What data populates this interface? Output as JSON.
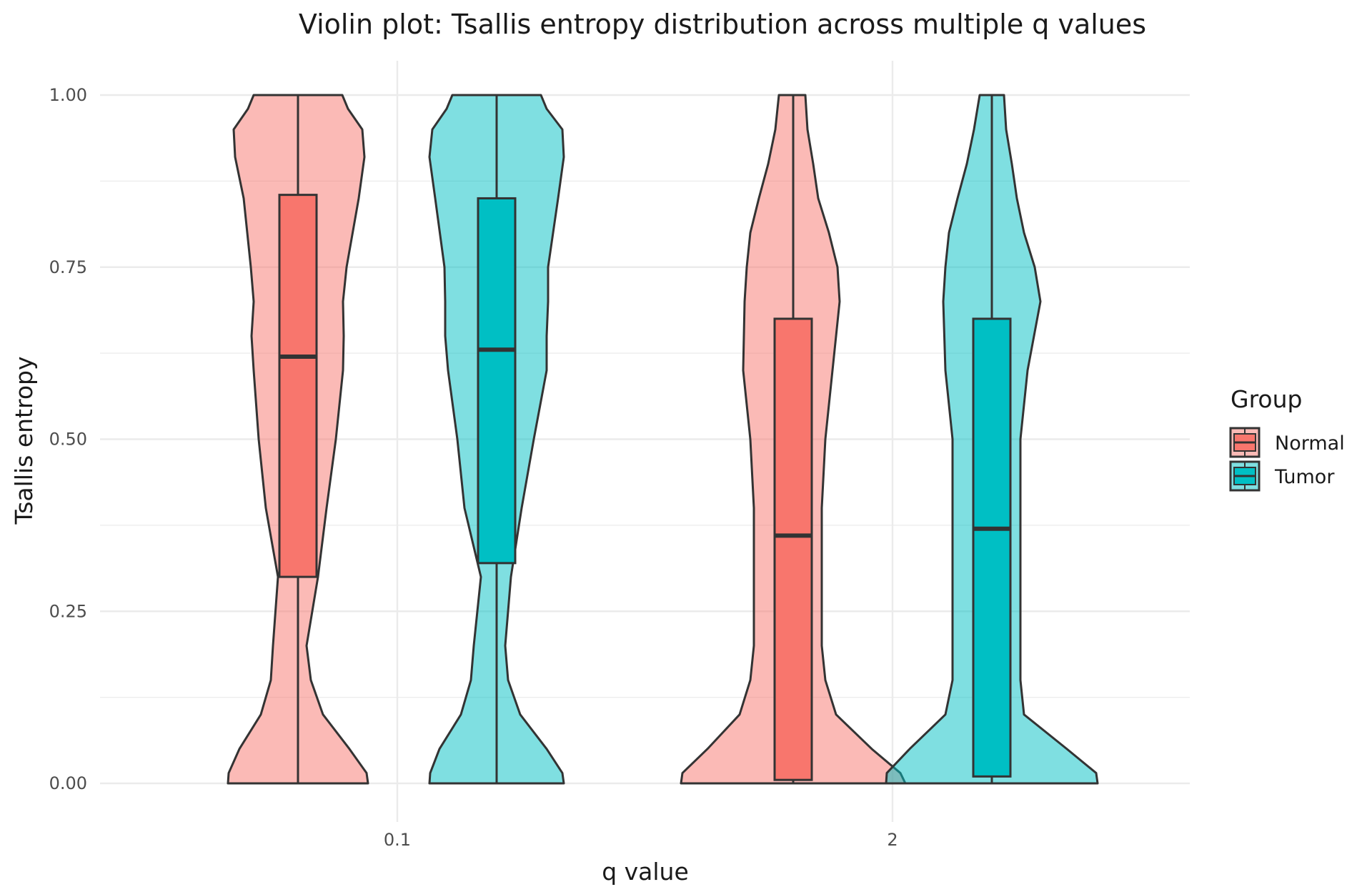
{
  "chart_data": {
    "type": "violin",
    "title": "Violin plot: Tsallis entropy distribution across multiple q values",
    "xlabel": "q value",
    "ylabel": "Tsallis entropy",
    "categories": [
      "0.1",
      "2"
    ],
    "ylim": [
      0,
      1
    ],
    "yticks": [
      "0.00",
      "0.25",
      "0.50",
      "0.75",
      "1.00"
    ],
    "grid": true,
    "legend": {
      "title": "Group",
      "placement": "right",
      "entries": [
        "Normal",
        "Tumor"
      ]
    },
    "colors": {
      "Normal": "#F8766D",
      "Tumor": "#00BFC4"
    },
    "series": [
      {
        "name": "Normal",
        "boxes": [
          {
            "q": "0.1",
            "min": 0.0,
            "q1": 0.3,
            "median": 0.62,
            "q3": 0.855,
            "max": 1.0
          },
          {
            "q": "2",
            "min": 0.0,
            "q1": 0.005,
            "median": 0.36,
            "q3": 0.675,
            "max": 1.0
          }
        ]
      },
      {
        "name": "Tumor",
        "boxes": [
          {
            "q": "0.1",
            "min": 0.0,
            "q1": 0.32,
            "median": 0.63,
            "q3": 0.85,
            "max": 1.0
          },
          {
            "q": "2",
            "min": 0.0,
            "q1": 0.01,
            "median": 0.37,
            "q3": 0.675,
            "max": 1.0
          }
        ]
      }
    ]
  }
}
